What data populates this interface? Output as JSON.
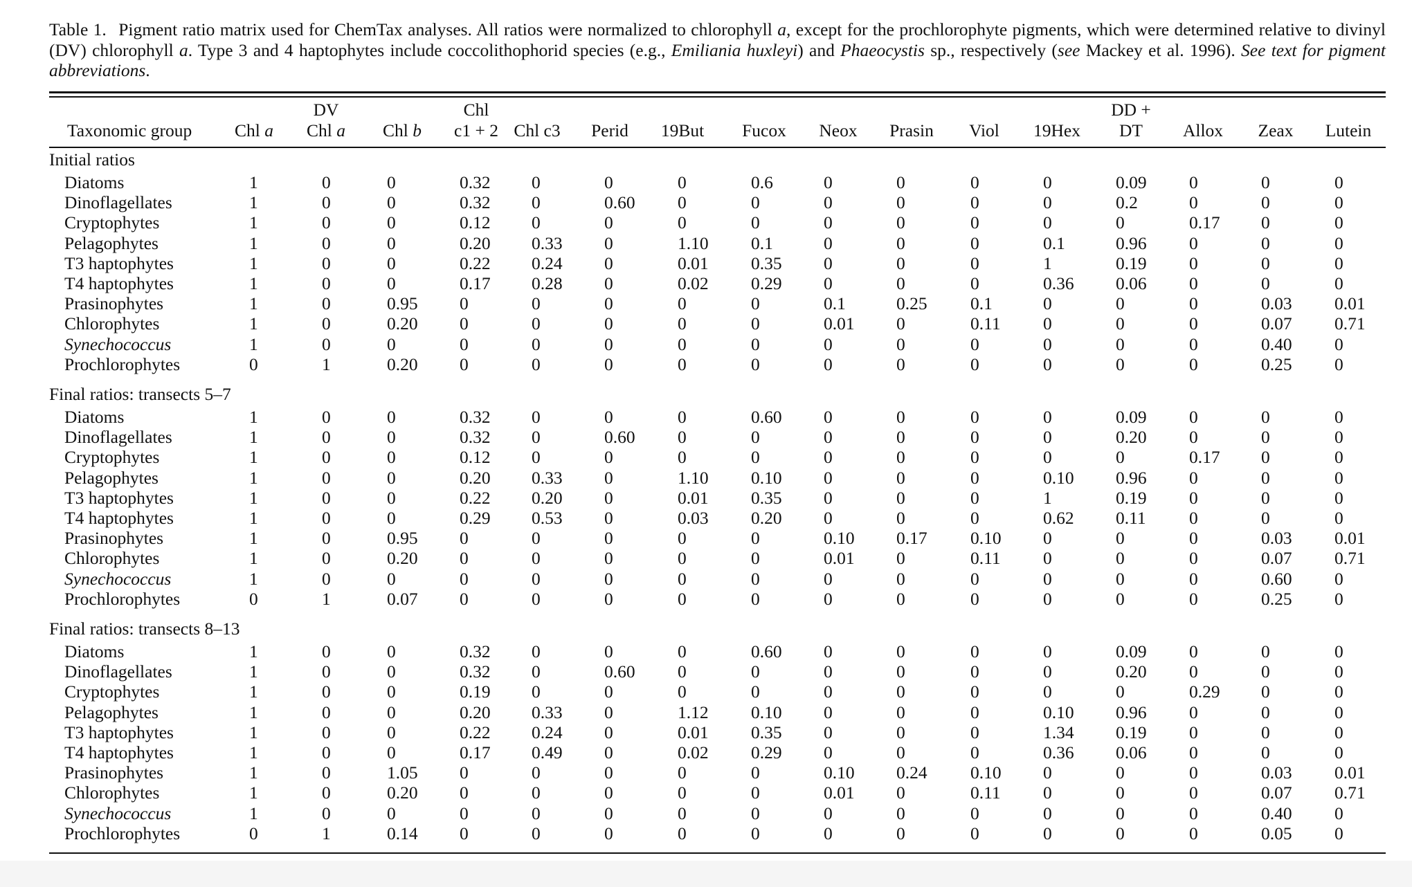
{
  "caption": {
    "lead": "Table 1.",
    "segments": [
      {
        "t": "Pigment ratio matrix used for ChemTax analyses. All ratios were normalized to chlorophyll ",
        "i": false
      },
      {
        "t": "a",
        "i": true
      },
      {
        "t": ", except for the prochlorophyte pigments, which were determined relative to divinyl (DV) chlorophyll ",
        "i": false
      },
      {
        "t": "a",
        "i": true
      },
      {
        "t": ". Type 3 and 4 haptophytes include coccolithophorid species (e.g., ",
        "i": false
      },
      {
        "t": "Emiliania huxleyi",
        "i": true
      },
      {
        "t": ") and ",
        "i": false
      },
      {
        "t": "Phaeocystis",
        "i": true
      },
      {
        "t": " sp., respectively (",
        "i": false
      },
      {
        "t": "see",
        "i": true
      },
      {
        "t": " Mackey et al. 1996). ",
        "i": false
      },
      {
        "t": "See text for pigment abbreviations",
        "i": true
      },
      {
        "t": ".",
        "i": false
      }
    ]
  },
  "columns": [
    {
      "l1": "",
      "l2": "Taxonomic group"
    },
    {
      "l1": "",
      "l2": "Chl ",
      "l2it": "a"
    },
    {
      "l1": "DV",
      "l2": "Chl ",
      "l2it": "a"
    },
    {
      "l1": "",
      "l2": "Chl ",
      "l2it": "b"
    },
    {
      "l1": "Chl",
      "l2": "c1 + 2"
    },
    {
      "l1": "",
      "l2": "Chl c3"
    },
    {
      "l1": "",
      "l2": "Perid"
    },
    {
      "l1": "",
      "l2": "19But"
    },
    {
      "l1": "",
      "l2": "Fucox"
    },
    {
      "l1": "",
      "l2": "Neox"
    },
    {
      "l1": "",
      "l2": "Prasin"
    },
    {
      "l1": "",
      "l2": "Viol"
    },
    {
      "l1": "",
      "l2": "19Hex"
    },
    {
      "l1": "DD +",
      "l2": "DT"
    },
    {
      "l1": "",
      "l2": "Allox"
    },
    {
      "l1": "",
      "l2": "Zeax"
    },
    {
      "l1": "",
      "l2": "Lutein"
    }
  ],
  "sections": [
    {
      "label": "Initial ratios",
      "rows": [
        {
          "name": "Diatoms",
          "italic": false,
          "v": [
            "1",
            "0",
            "0",
            "0.32",
            "0",
            "0",
            "0",
            "0.6",
            "0",
            "0",
            "0",
            "0",
            "0.09",
            "0",
            "0",
            "0"
          ]
        },
        {
          "name": "Dinoflagellates",
          "italic": false,
          "v": [
            "1",
            "0",
            "0",
            "0.32",
            "0",
            "0.60",
            "0",
            "0",
            "0",
            "0",
            "0",
            "0",
            "0.2",
            "0",
            "0",
            "0"
          ]
        },
        {
          "name": "Cryptophytes",
          "italic": false,
          "v": [
            "1",
            "0",
            "0",
            "0.12",
            "0",
            "0",
            "0",
            "0",
            "0",
            "0",
            "0",
            "0",
            "0",
            "0.17",
            "0",
            "0"
          ]
        },
        {
          "name": "Pelagophytes",
          "italic": false,
          "v": [
            "1",
            "0",
            "0",
            "0.20",
            "0.33",
            "0",
            "1.10",
            "0.1",
            "0",
            "0",
            "0",
            "0.1",
            "0.96",
            "0",
            "0",
            "0"
          ]
        },
        {
          "name": "T3 haptophytes",
          "italic": false,
          "v": [
            "1",
            "0",
            "0",
            "0.22",
            "0.24",
            "0",
            "0.01",
            "0.35",
            "0",
            "0",
            "0",
            "1",
            "0.19",
            "0",
            "0",
            "0"
          ]
        },
        {
          "name": "T4 haptophytes",
          "italic": false,
          "v": [
            "1",
            "0",
            "0",
            "0.17",
            "0.28",
            "0",
            "0.02",
            "0.29",
            "0",
            "0",
            "0",
            "0.36",
            "0.06",
            "0",
            "0",
            "0"
          ]
        },
        {
          "name": "Prasinophytes",
          "italic": false,
          "v": [
            "1",
            "0",
            "0.95",
            "0",
            "0",
            "0",
            "0",
            "0",
            "0.1",
            "0.25",
            "0.1",
            "0",
            "0",
            "0",
            "0.03",
            "0.01"
          ]
        },
        {
          "name": "Chlorophytes",
          "italic": false,
          "v": [
            "1",
            "0",
            "0.20",
            "0",
            "0",
            "0",
            "0",
            "0",
            "0.01",
            "0",
            "0.11",
            "0",
            "0",
            "0",
            "0.07",
            "0.71"
          ]
        },
        {
          "name": "Synechococcus",
          "italic": true,
          "v": [
            "1",
            "0",
            "0",
            "0",
            "0",
            "0",
            "0",
            "0",
            "0",
            "0",
            "0",
            "0",
            "0",
            "0",
            "0.40",
            "0"
          ]
        },
        {
          "name": "Prochlorophytes",
          "italic": false,
          "v": [
            "0",
            "1",
            "0.20",
            "0",
            "0",
            "0",
            "0",
            "0",
            "0",
            "0",
            "0",
            "0",
            "0",
            "0",
            "0.25",
            "0"
          ]
        }
      ]
    },
    {
      "label": "Final ratios: transects 5–7",
      "rows": [
        {
          "name": "Diatoms",
          "italic": false,
          "v": [
            "1",
            "0",
            "0",
            "0.32",
            "0",
            "0",
            "0",
            "0.60",
            "0",
            "0",
            "0",
            "0",
            "0.09",
            "0",
            "0",
            "0"
          ]
        },
        {
          "name": "Dinoflagellates",
          "italic": false,
          "v": [
            "1",
            "0",
            "0",
            "0.32",
            "0",
            "0.60",
            "0",
            "0",
            "0",
            "0",
            "0",
            "0",
            "0.20",
            "0",
            "0",
            "0"
          ]
        },
        {
          "name": "Cryptophytes",
          "italic": false,
          "v": [
            "1",
            "0",
            "0",
            "0.12",
            "0",
            "0",
            "0",
            "0",
            "0",
            "0",
            "0",
            "0",
            "0",
            "0.17",
            "0",
            "0"
          ]
        },
        {
          "name": "Pelagophytes",
          "italic": false,
          "v": [
            "1",
            "0",
            "0",
            "0.20",
            "0.33",
            "0",
            "1.10",
            "0.10",
            "0",
            "0",
            "0",
            "0.10",
            "0.96",
            "0",
            "0",
            "0"
          ]
        },
        {
          "name": "T3 haptophytes",
          "italic": false,
          "v": [
            "1",
            "0",
            "0",
            "0.22",
            "0.20",
            "0",
            "0.01",
            "0.35",
            "0",
            "0",
            "0",
            "1",
            "0.19",
            "0",
            "0",
            "0"
          ]
        },
        {
          "name": "T4 haptophytes",
          "italic": false,
          "v": [
            "1",
            "0",
            "0",
            "0.29",
            "0.53",
            "0",
            "0.03",
            "0.20",
            "0",
            "0",
            "0",
            "0.62",
            "0.11",
            "0",
            "0",
            "0"
          ]
        },
        {
          "name": "Prasinophytes",
          "italic": false,
          "v": [
            "1",
            "0",
            "0.95",
            "0",
            "0",
            "0",
            "0",
            "0",
            "0.10",
            "0.17",
            "0.10",
            "0",
            "0",
            "0",
            "0.03",
            "0.01"
          ]
        },
        {
          "name": "Chlorophytes",
          "italic": false,
          "v": [
            "1",
            "0",
            "0.20",
            "0",
            "0",
            "0",
            "0",
            "0",
            "0.01",
            "0",
            "0.11",
            "0",
            "0",
            "0",
            "0.07",
            "0.71"
          ]
        },
        {
          "name": "Synechococcus",
          "italic": true,
          "v": [
            "1",
            "0",
            "0",
            "0",
            "0",
            "0",
            "0",
            "0",
            "0",
            "0",
            "0",
            "0",
            "0",
            "0",
            "0.60",
            "0"
          ]
        },
        {
          "name": "Prochlorophytes",
          "italic": false,
          "v": [
            "0",
            "1",
            "0.07",
            "0",
            "0",
            "0",
            "0",
            "0",
            "0",
            "0",
            "0",
            "0",
            "0",
            "0",
            "0.25",
            "0"
          ]
        }
      ]
    },
    {
      "label": "Final ratios: transects 8–13",
      "rows": [
        {
          "name": "Diatoms",
          "italic": false,
          "v": [
            "1",
            "0",
            "0",
            "0.32",
            "0",
            "0",
            "0",
            "0.60",
            "0",
            "0",
            "0",
            "0",
            "0.09",
            "0",
            "0",
            "0"
          ]
        },
        {
          "name": "Dinoflagellates",
          "italic": false,
          "v": [
            "1",
            "0",
            "0",
            "0.32",
            "0",
            "0.60",
            "0",
            "0",
            "0",
            "0",
            "0",
            "0",
            "0.20",
            "0",
            "0",
            "0"
          ]
        },
        {
          "name": "Cryptophytes",
          "italic": false,
          "v": [
            "1",
            "0",
            "0",
            "0.19",
            "0",
            "0",
            "0",
            "0",
            "0",
            "0",
            "0",
            "0",
            "0",
            "0.29",
            "0",
            "0"
          ]
        },
        {
          "name": "Pelagophytes",
          "italic": false,
          "v": [
            "1",
            "0",
            "0",
            "0.20",
            "0.33",
            "0",
            "1.12",
            "0.10",
            "0",
            "0",
            "0",
            "0.10",
            "0.96",
            "0",
            "0",
            "0"
          ]
        },
        {
          "name": "T3 haptophytes",
          "italic": false,
          "v": [
            "1",
            "0",
            "0",
            "0.22",
            "0.24",
            "0",
            "0.01",
            "0.35",
            "0",
            "0",
            "0",
            "1.34",
            "0.19",
            "0",
            "0",
            "0"
          ]
        },
        {
          "name": "T4 haptophytes",
          "italic": false,
          "v": [
            "1",
            "0",
            "0",
            "0.17",
            "0.49",
            "0",
            "0.02",
            "0.29",
            "0",
            "0",
            "0",
            "0.36",
            "0.06",
            "0",
            "0",
            "0"
          ]
        },
        {
          "name": "Prasinophytes",
          "italic": false,
          "v": [
            "1",
            "0",
            "1.05",
            "0",
            "0",
            "0",
            "0",
            "0",
            "0.10",
            "0.24",
            "0.10",
            "0",
            "0",
            "0",
            "0.03",
            "0.01"
          ]
        },
        {
          "name": "Chlorophytes",
          "italic": false,
          "v": [
            "1",
            "0",
            "0.20",
            "0",
            "0",
            "0",
            "0",
            "0",
            "0.01",
            "0",
            "0.11",
            "0",
            "0",
            "0",
            "0.07",
            "0.71"
          ]
        },
        {
          "name": "Synechococcus",
          "italic": true,
          "v": [
            "1",
            "0",
            "0",
            "0",
            "0",
            "0",
            "0",
            "0",
            "0",
            "0",
            "0",
            "0",
            "0",
            "0",
            "0.40",
            "0"
          ]
        },
        {
          "name": "Prochlorophytes",
          "italic": false,
          "v": [
            "0",
            "1",
            "0.14",
            "0",
            "0",
            "0",
            "0",
            "0",
            "0",
            "0",
            "0",
            "0",
            "0",
            "0",
            "0.05",
            "0"
          ]
        }
      ]
    }
  ]
}
